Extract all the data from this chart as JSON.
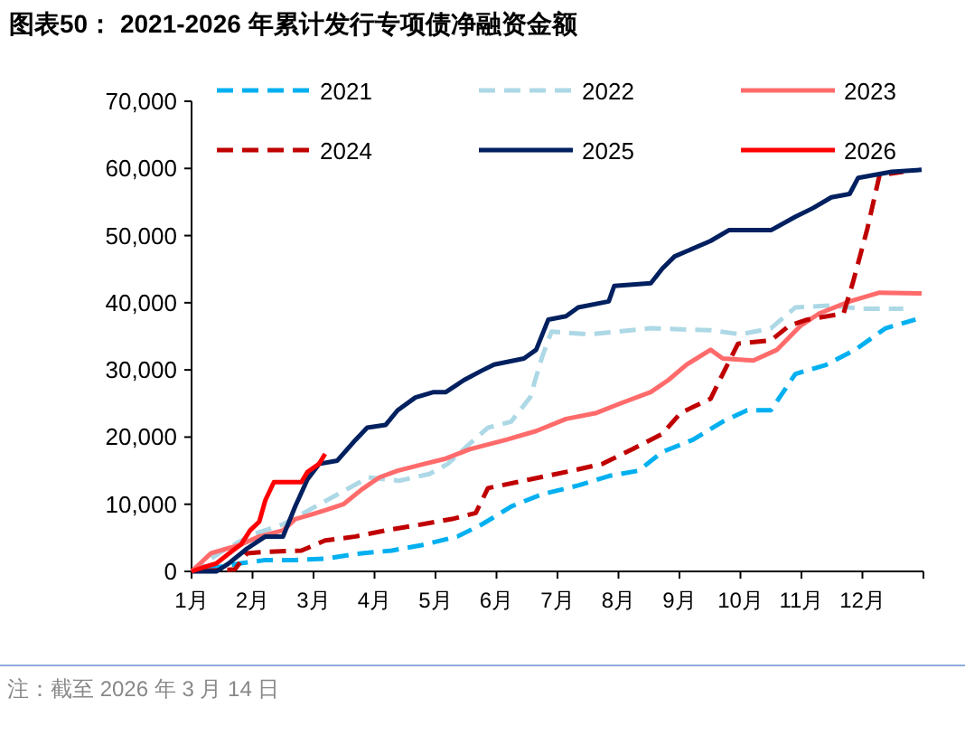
{
  "chart_data": {
    "type": "line",
    "title": "图表50：  2021-2026 年累计发行专项债净融资金额",
    "annotations": [
      "注：截至 2026 年 3 月 14 日"
    ],
    "xlim": [
      1,
      13
    ],
    "xticks": [
      {
        "value": 1,
        "label": "1月"
      },
      {
        "value": 2,
        "label": "2月"
      },
      {
        "value": 3,
        "label": "3月"
      },
      {
        "value": 4,
        "label": "4月"
      },
      {
        "value": 5,
        "label": "5月"
      },
      {
        "value": 6,
        "label": "6月"
      },
      {
        "value": 7,
        "label": "7月"
      },
      {
        "value": 8,
        "label": "8月"
      },
      {
        "value": 9,
        "label": "9月"
      },
      {
        "value": 10,
        "label": "10月"
      },
      {
        "value": 11,
        "label": "11月"
      },
      {
        "value": 12,
        "label": "12月"
      },
      {
        "value": 13,
        "label": null
      }
    ],
    "ylim": [
      0,
      70000
    ],
    "yticks": [
      {
        "value": 0,
        "label": "0"
      },
      {
        "value": 10000,
        "label": "10,000"
      },
      {
        "value": 20000,
        "label": "20,000"
      },
      {
        "value": 30000,
        "label": "30,000"
      },
      {
        "value": 40000,
        "label": "40,000"
      },
      {
        "value": 50000,
        "label": "50,000"
      },
      {
        "value": 60000,
        "label": "60,000"
      },
      {
        "value": 70000,
        "label": "70,000"
      }
    ],
    "legend": "top",
    "grid": false,
    "marker": "none",
    "series": [
      {
        "name": "2021",
        "color": "#00b0f0",
        "line_style": "dashed",
        "x": [
          1.0,
          1.81,
          2.21,
          2.7,
          3.19,
          3.79,
          4.28,
          4.77,
          5.36,
          5.76,
          6.25,
          6.75,
          7.34,
          7.84,
          8.33,
          8.72,
          9.22,
          9.71,
          10.11,
          10.5,
          10.9,
          11.39,
          11.88,
          12.38,
          12.87
        ],
        "values": [
          0,
          1200,
          1700,
          1700,
          1900,
          2700,
          3100,
          3900,
          5200,
          7000,
          9700,
          11500,
          12800,
          14200,
          15000,
          17800,
          19600,
          22300,
          24000,
          24000,
          29400,
          30700,
          33000,
          36200,
          37500
        ]
      },
      {
        "name": "2022",
        "color": "#add8e6",
        "line_style": "dashed",
        "x": [
          1.0,
          1.5,
          2.0,
          2.5,
          3.0,
          3.5,
          3.9,
          4.4,
          4.9,
          5.2,
          5.56,
          5.86,
          6.24,
          6.55,
          6.75,
          6.9,
          7.54,
          8.53,
          9.51,
          10.01,
          10.5,
          10.9,
          11.49,
          11.98,
          12.67
        ],
        "values": [
          0,
          3000,
          5500,
          7000,
          9500,
          12000,
          14000,
          13500,
          14500,
          16000,
          19000,
          21400,
          22300,
          25900,
          32000,
          35700,
          35300,
          36200,
          35900,
          35300,
          36200,
          39300,
          39600,
          39100,
          39100
        ]
      },
      {
        "name": "2023",
        "color": "#ff6b6b",
        "line_style": "solid",
        "x": [
          1.0,
          1.32,
          1.81,
          2.11,
          2.5,
          2.7,
          2.9,
          3.19,
          3.49,
          3.79,
          4.08,
          4.38,
          4.77,
          5.17,
          5.56,
          6.16,
          6.65,
          7.14,
          7.64,
          8.03,
          8.53,
          8.82,
          9.12,
          9.51,
          9.71,
          10.21,
          10.6,
          10.99,
          11.29,
          11.79,
          12.28,
          12.97
        ],
        "values": [
          0,
          2700,
          4000,
          5200,
          6100,
          7800,
          8300,
          9100,
          10000,
          12200,
          14000,
          15000,
          15900,
          16800,
          18200,
          19600,
          20900,
          22700,
          23600,
          25000,
          26700,
          28500,
          30800,
          33000,
          31700,
          31400,
          33000,
          36600,
          38400,
          40200,
          41500,
          41400
        ]
      },
      {
        "name": "2024",
        "color": "#c00000",
        "line_style": "dashed",
        "x": [
          1.0,
          1.71,
          1.91,
          2.21,
          2.8,
          3.19,
          3.69,
          4.18,
          4.77,
          5.27,
          5.66,
          5.86,
          6.55,
          7.24,
          7.73,
          8.23,
          8.72,
          9.02,
          9.51,
          9.71,
          9.96,
          10.5,
          10.8,
          11.1,
          11.69,
          11.84,
          12.08,
          12.28,
          12.67
        ],
        "values": [
          0,
          300,
          2700,
          2900,
          3100,
          4600,
          5200,
          6100,
          7000,
          7800,
          8700,
          12400,
          13700,
          15000,
          16000,
          18200,
          20500,
          23600,
          25700,
          29400,
          33900,
          34400,
          36600,
          37500,
          38400,
          42900,
          51000,
          59000,
          59500
        ]
      },
      {
        "name": "2025",
        "color": "#002060",
        "line_style": "solid",
        "x": [
          1.0,
          1.41,
          1.61,
          1.91,
          2.21,
          2.5,
          2.7,
          2.9,
          3.09,
          3.39,
          3.69,
          3.88,
          4.18,
          4.38,
          4.67,
          4.97,
          5.17,
          5.47,
          5.76,
          5.96,
          6.45,
          6.65,
          6.85,
          7.14,
          7.34,
          7.84,
          7.93,
          8.53,
          8.72,
          8.92,
          9.51,
          9.81,
          10.5,
          10.9,
          11.19,
          11.49,
          11.79,
          11.93,
          12.48,
          12.97
        ],
        "values": [
          0,
          0,
          1200,
          3400,
          5200,
          5200,
          9700,
          13700,
          16000,
          16500,
          19600,
          21400,
          21800,
          24000,
          25900,
          26700,
          26700,
          28500,
          29900,
          30800,
          31700,
          33000,
          37500,
          38000,
          39300,
          40200,
          42500,
          42900,
          45100,
          46900,
          49200,
          50800,
          50800,
          52800,
          54100,
          55700,
          56200,
          58600,
          59500,
          59800
        ]
      },
      {
        "name": "2026",
        "color": "#ff0000",
        "line_style": "solid",
        "x": [
          1.0,
          1.22,
          1.41,
          1.66,
          1.81,
          1.96,
          2.11,
          2.21,
          2.35,
          2.8,
          2.9,
          3.09,
          3.19
        ],
        "values": [
          0,
          700,
          1200,
          3000,
          4000,
          6100,
          7400,
          10600,
          13300,
          13300,
          14800,
          16000,
          17500
        ]
      }
    ]
  }
}
